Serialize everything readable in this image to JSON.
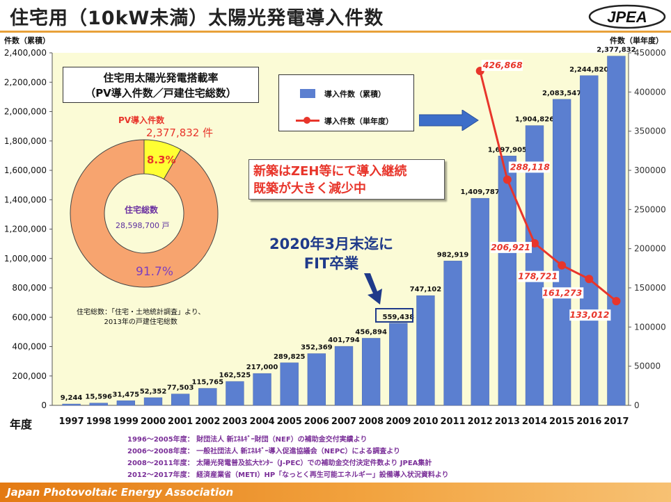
{
  "header": {
    "title": "住宅用（10kW未満）太陽光発電導入件数",
    "logo_text": "JPEA"
  },
  "left_axis_title": "件数（累積）",
  "right_axis_title": "件数（単年度）",
  "x_axis_title": "年度",
  "colors": {
    "bar": "#5b7fd0",
    "line": "#e8352b",
    "plot_bg": "#fbfbd6",
    "donut_main": "#f7a46f",
    "donut_slice": "#ffff33"
  },
  "chart_data": {
    "type": "bar",
    "categories": [
      "1997",
      "1998",
      "1999",
      "2000",
      "2001",
      "2002",
      "2003",
      "2004",
      "2005",
      "2006",
      "2007",
      "2008",
      "2009",
      "2010",
      "2011",
      "2012",
      "2013",
      "2014",
      "2015",
      "2016",
      "2017"
    ],
    "series": [
      {
        "name": "導入件数（累積）",
        "type": "bar",
        "axis": "left",
        "values": [
          9244,
          15596,
          31475,
          52352,
          77503,
          115765,
          162525,
          217000,
          289825,
          352369,
          401794,
          456894,
          559438,
          747102,
          982919,
          1409787,
          1697905,
          1904826,
          2083547,
          2244820,
          2377832
        ],
        "labels": [
          "9,244",
          "15,596",
          "31,475",
          "52,352",
          "77,503",
          "115,765",
          "162,525",
          "217,000",
          "289,825",
          "352,369",
          "401,794",
          "456,894",
          "559,438",
          "747,102",
          "982,919",
          "1,409,787",
          "1,697,905",
          "1,904,826",
          "2,083,547",
          "2,244,820",
          "2,377,832"
        ]
      },
      {
        "name": "導入件数（単年度）",
        "type": "line",
        "axis": "right",
        "x": [
          "2012",
          "2013",
          "2014",
          "2015",
          "2016",
          "2017"
        ],
        "values": [
          426868,
          288118,
          206921,
          178721,
          161273,
          133012
        ],
        "labels": [
          "426,868",
          "288,118",
          "206,921",
          "178,721",
          "161,273",
          "133,012"
        ]
      }
    ],
    "y_left": {
      "lim": [
        0,
        2400000
      ],
      "ticks": [
        "0",
        "200,000",
        "400,000",
        "600,000",
        "800,000",
        "1,000,000",
        "1,200,000",
        "1,400,000",
        "1,600,000",
        "1,800,000",
        "2,000,000",
        "2,200,000",
        "2,400,000"
      ]
    },
    "y_right": {
      "lim": [
        0,
        450000
      ],
      "ticks": [
        "0",
        "50000",
        "100000",
        "150000",
        "200000",
        "250000",
        "300000",
        "350000",
        "400000",
        "450000"
      ]
    },
    "grid": false,
    "legend_position": "top-center"
  },
  "inset": {
    "box_line1": "住宅用太陽光発電搭載率",
    "box_line2": "（PV導入件数／戸建住宅総数）",
    "pv_label": "PV導入件数",
    "pv_value": "2,377,832 件",
    "housing_label": "住宅総数",
    "housing_value": "28,598,700 戸",
    "pct_pv": "8.3%",
    "pct_rest": "91.7%",
    "donut": {
      "type": "pie",
      "values": [
        8.3,
        91.7
      ]
    },
    "source_line1": "住宅総数：「住宅・土地統計調査」より、",
    "source_line2": "2013年の戸建住宅総数"
  },
  "callout": {
    "line1": "新築はZEH等にて導入継続",
    "line2": "既築が大きく減少中"
  },
  "fit_note": {
    "line1": "2020年3月末迄に",
    "line2": "FIT卒業"
  },
  "notes": [
    "1996～2005年度： 財団法人 新ｴﾈﾙｷﾞｰ財団（NEF）の補助金交付実績より",
    "2006～2008年度： 一般社団法人 新ｴﾈﾙｷﾞｰ導入促進協議会（NEPC）による調査より",
    "2008～2011年度： 太陽光発電普及拡大ｾﾝﾀｰ（J-PEC）での補助金交付決定件数より JPEA集計",
    "2012～2017年度： 経済産業省（METI）HP「なっとく再生可能エネルギー」設備導入状況資料より"
  ],
  "footer": "Japan Photovoltaic Energy Association"
}
